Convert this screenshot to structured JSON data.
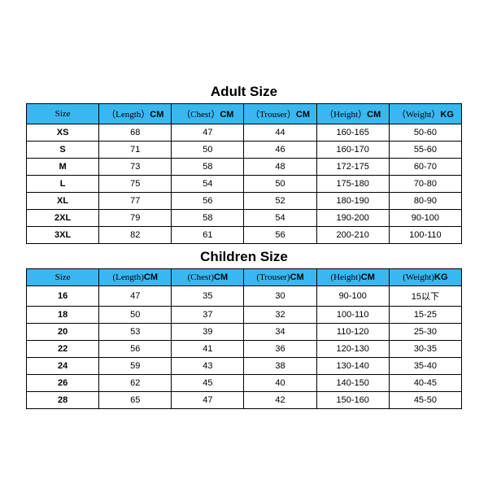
{
  "colors": {
    "header_bg": "#39b8f0",
    "border": "#000000",
    "bg": "#ffffff",
    "text": "#000000"
  },
  "adult": {
    "title": "Adult Size",
    "columns": [
      {
        "label": "Size",
        "unit": ""
      },
      {
        "label": "（Length）",
        "unit": "CM"
      },
      {
        "label": "（Chest）",
        "unit": "CM"
      },
      {
        "label": "（Trouser）",
        "unit": "CM"
      },
      {
        "label": "（Height）",
        "unit": "CM"
      },
      {
        "label": "（Weight）",
        "unit": "KG"
      }
    ],
    "rows": [
      [
        "XS",
        "68",
        "47",
        "44",
        "160-165",
        "50-60"
      ],
      [
        "S",
        "71",
        "50",
        "46",
        "160-170",
        "55-60"
      ],
      [
        "M",
        "73",
        "58",
        "48",
        "172-175",
        "60-70"
      ],
      [
        "L",
        "75",
        "54",
        "50",
        "175-180",
        "70-80"
      ],
      [
        "XL",
        "77",
        "56",
        "52",
        "180-190",
        "80-90"
      ],
      [
        "2XL",
        "79",
        "58",
        "54",
        "190-200",
        "90-100"
      ],
      [
        "3XL",
        "82",
        "61",
        "56",
        "200-210",
        "100-110"
      ]
    ]
  },
  "children": {
    "title": "Children Size",
    "columns": [
      {
        "label": "Size",
        "unit": ""
      },
      {
        "label": "(Length)",
        "unit": "CM"
      },
      {
        "label": "(Chest)",
        "unit": "CM"
      },
      {
        "label": "(Trouser)",
        "unit": "CM"
      },
      {
        "label": "(Height)",
        "unit": "CM"
      },
      {
        "label": "(Weight)",
        "unit": "KG"
      }
    ],
    "rows": [
      [
        "16",
        "47",
        "35",
        "30",
        "90-100",
        "15以下"
      ],
      [
        "18",
        "50",
        "37",
        "32",
        "100-110",
        "15-25"
      ],
      [
        "20",
        "53",
        "39",
        "34",
        "110-120",
        "25-30"
      ],
      [
        "22",
        "56",
        "41",
        "36",
        "120-130",
        "30-35"
      ],
      [
        "24",
        "59",
        "43",
        "38",
        "130-140",
        "35-40"
      ],
      [
        "26",
        "62",
        "45",
        "40",
        "140-150",
        "40-45"
      ],
      [
        "28",
        "65",
        "47",
        "42",
        "150-160",
        "45-50"
      ]
    ]
  }
}
